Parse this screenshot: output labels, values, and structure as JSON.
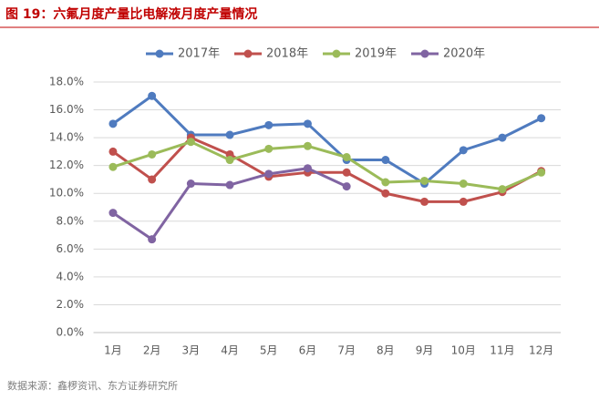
{
  "chart_data": {
    "type": "line",
    "title": "图 19：六氟月度产量比电解液月度产量情况",
    "source": "数据来源：鑫椤资讯、东方证券研究所",
    "categories": [
      "1月",
      "2月",
      "3月",
      "4月",
      "5月",
      "6月",
      "7月",
      "8月",
      "9月",
      "10月",
      "11月",
      "12月"
    ],
    "series": [
      {
        "name": "2017年",
        "color": "#4f7bbf",
        "values": [
          15.0,
          17.0,
          14.2,
          14.2,
          14.9,
          15.0,
          12.4,
          12.4,
          10.7,
          13.1,
          14.0,
          15.4
        ]
      },
      {
        "name": "2018年",
        "color": "#c0504d",
        "values": [
          13.0,
          11.0,
          14.0,
          12.8,
          11.2,
          11.5,
          11.5,
          10.0,
          9.4,
          9.4,
          10.1,
          11.6
        ]
      },
      {
        "name": "2019年",
        "color": "#9bbb59",
        "values": [
          11.9,
          12.8,
          13.7,
          12.4,
          13.2,
          13.4,
          12.6,
          10.8,
          10.9,
          10.7,
          10.3,
          11.5
        ]
      },
      {
        "name": "2020年",
        "color": "#8064a2",
        "values": [
          8.6,
          6.7,
          10.7,
          10.6,
          11.4,
          11.8,
          10.5,
          null,
          null,
          null,
          null,
          null
        ]
      }
    ],
    "ylim": [
      0,
      18
    ],
    "yticks": [
      {
        "value": 0,
        "label": "0.0%"
      },
      {
        "value": 2,
        "label": "2.0%"
      },
      {
        "value": 4,
        "label": "4.0%"
      },
      {
        "value": 6,
        "label": "6.0%"
      },
      {
        "value": 8,
        "label": "8.0%"
      },
      {
        "value": 10,
        "label": "10.0%"
      },
      {
        "value": 12,
        "label": "12.0%"
      },
      {
        "value": 14,
        "label": "14.0%"
      },
      {
        "value": 16,
        "label": "16.0%"
      },
      {
        "value": 18,
        "label": "18.0%"
      }
    ],
    "grid": true,
    "legend": "top"
  }
}
